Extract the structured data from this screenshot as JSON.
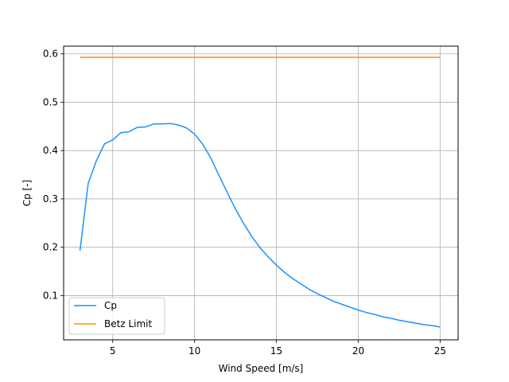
{
  "chart_data": {
    "type": "line",
    "xlabel": "Wind Speed [m/s]",
    "ylabel": "Cp [-]",
    "xlim": [
      2.0,
      26.1
    ],
    "ylim": [
      0.0085,
      0.616
    ],
    "xticks": [
      5,
      10,
      15,
      20,
      25
    ],
    "xtick_labels": [
      "5",
      "10",
      "15",
      "20",
      "25"
    ],
    "yticks": [
      0.1,
      0.2,
      0.3,
      0.4,
      0.5,
      0.6
    ],
    "ytick_labels": [
      "0.1",
      "0.2",
      "0.3",
      "0.4",
      "0.5",
      "0.6"
    ],
    "grid": true,
    "legend_position": "lower-left",
    "series": [
      {
        "name": "Cp",
        "color": "#1e90ff",
        "x": [
          3,
          3.5,
          4,
          4.5,
          5,
          5.5,
          6,
          6.5,
          7,
          7.5,
          8,
          8.5,
          9,
          9.5,
          10,
          10.5,
          11,
          11.5,
          12,
          12.5,
          13,
          13.5,
          14,
          14.5,
          15,
          15.5,
          16,
          16.5,
          17,
          17.5,
          18,
          18.5,
          19,
          19.5,
          20,
          20.5,
          21,
          21.5,
          22,
          22.5,
          23,
          23.5,
          24,
          24.5,
          25
        ],
        "y": [
          0.193,
          0.332,
          0.379,
          0.414,
          0.422,
          0.437,
          0.439,
          0.448,
          0.449,
          0.455,
          0.455,
          0.456,
          0.453,
          0.447,
          0.434,
          0.413,
          0.384,
          0.348,
          0.313,
          0.279,
          0.249,
          0.222,
          0.199,
          0.18,
          0.163,
          0.148,
          0.135,
          0.124,
          0.113,
          0.104,
          0.096,
          0.088,
          0.082,
          0.076,
          0.07,
          0.065,
          0.061,
          0.056,
          0.053,
          0.049,
          0.046,
          0.043,
          0.04,
          0.038,
          0.035
        ]
      },
      {
        "name": "Betz Limit",
        "color": "#ff8c00",
        "x": [
          3,
          25
        ],
        "y": [
          0.593,
          0.593
        ]
      }
    ]
  }
}
